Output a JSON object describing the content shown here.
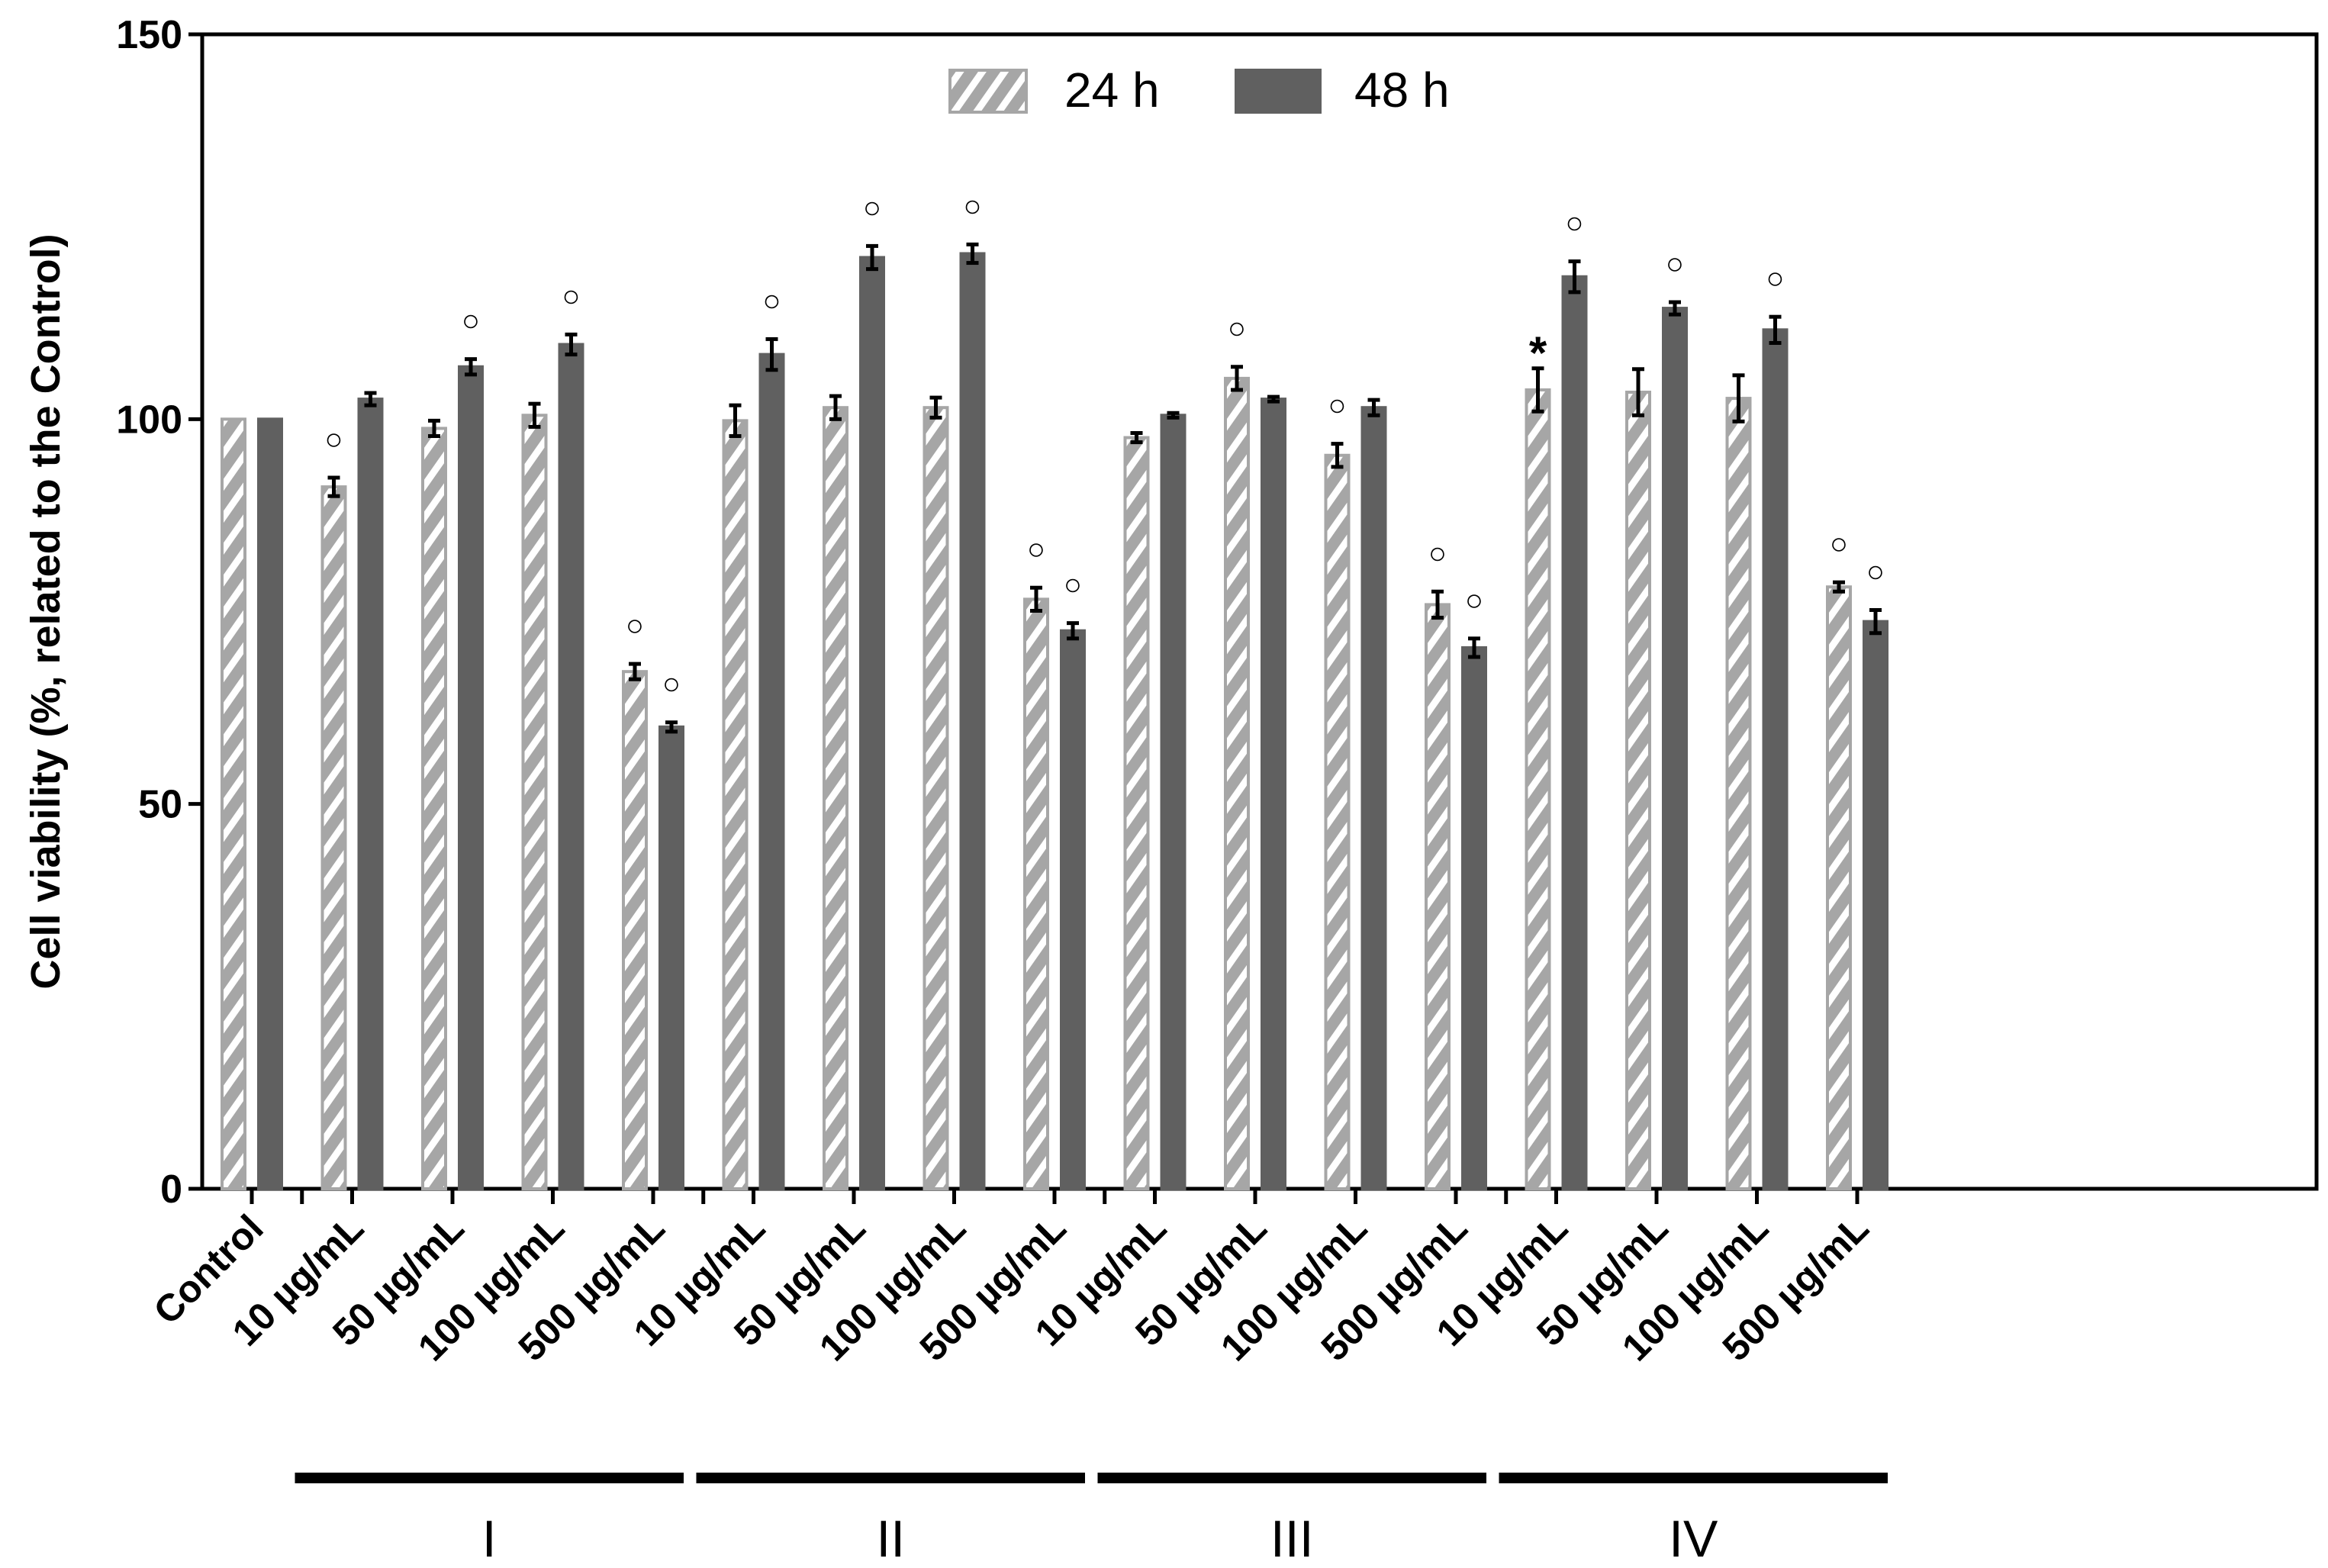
{
  "chart_data": {
    "type": "bar",
    "title": "",
    "ylabel": "Cell viability (%, related to the Control)",
    "xlabel": "",
    "ylim": [
      0,
      150
    ],
    "yticks": [
      0,
      50,
      100,
      150
    ],
    "legend": {
      "position": "top-center",
      "entries": [
        "24 h",
        "48 h"
      ]
    },
    "colors": {
      "24 h": "#a6a6a6",
      "48 h": "#606060",
      "text": "#000000"
    },
    "categories": [
      "Control",
      "10 µg/mL",
      "50 µg/mL",
      "100 µg/mL",
      "500 µg/mL",
      "10 µg/mL",
      "50 µg/mL",
      "100 µg/mL",
      "500 µg/mL",
      "10 µg/mL",
      "50 µg/mL",
      "100 µg/mL",
      "500 µg/mL",
      "10 µg/mL",
      "50 µg/mL",
      "100 µg/mL",
      "500 µg/mL"
    ],
    "group_index": [
      null,
      0,
      0,
      0,
      0,
      1,
      1,
      1,
      1,
      2,
      2,
      2,
      2,
      3,
      3,
      3,
      3
    ],
    "groups": [
      "I",
      "II",
      "III",
      "IV"
    ],
    "series": [
      {
        "name": "24 h",
        "values": [
          100,
          91.2,
          98.8,
          100.5,
          67.2,
          99.8,
          101.5,
          101.5,
          76.6,
          97.6,
          105.3,
          95.3,
          75.9,
          103.8,
          103.5,
          102.7,
          78.2
        ],
        "errors": [
          0,
          1.2,
          1.0,
          1.5,
          1.0,
          2.0,
          1.5,
          1.3,
          1.5,
          0.6,
          1.5,
          1.5,
          1.7,
          2.8,
          3.0,
          3.0,
          0.6
        ],
        "markers": [
          "",
          "○",
          "",
          "",
          "○",
          "",
          "",
          "",
          "○",
          "",
          "○",
          "○",
          "○",
          "*",
          "",
          "",
          "○"
        ]
      },
      {
        "name": "48 h",
        "values": [
          100,
          102.6,
          106.8,
          109.7,
          60.0,
          108.4,
          121.0,
          121.5,
          72.5,
          100.5,
          102.6,
          101.5,
          70.3,
          118.5,
          114.4,
          111.6,
          73.7
        ],
        "errors": [
          0,
          0.8,
          1.0,
          1.3,
          0.6,
          2.0,
          1.5,
          1.2,
          1.0,
          0.3,
          0.3,
          1.0,
          1.2,
          2.0,
          0.8,
          1.7,
          1.5
        ],
        "markers": [
          "",
          "",
          "○",
          "○",
          "○",
          "○",
          "○",
          "○",
          "○",
          "",
          "",
          "",
          "○",
          "○",
          "○",
          "○",
          "○"
        ]
      }
    ]
  }
}
